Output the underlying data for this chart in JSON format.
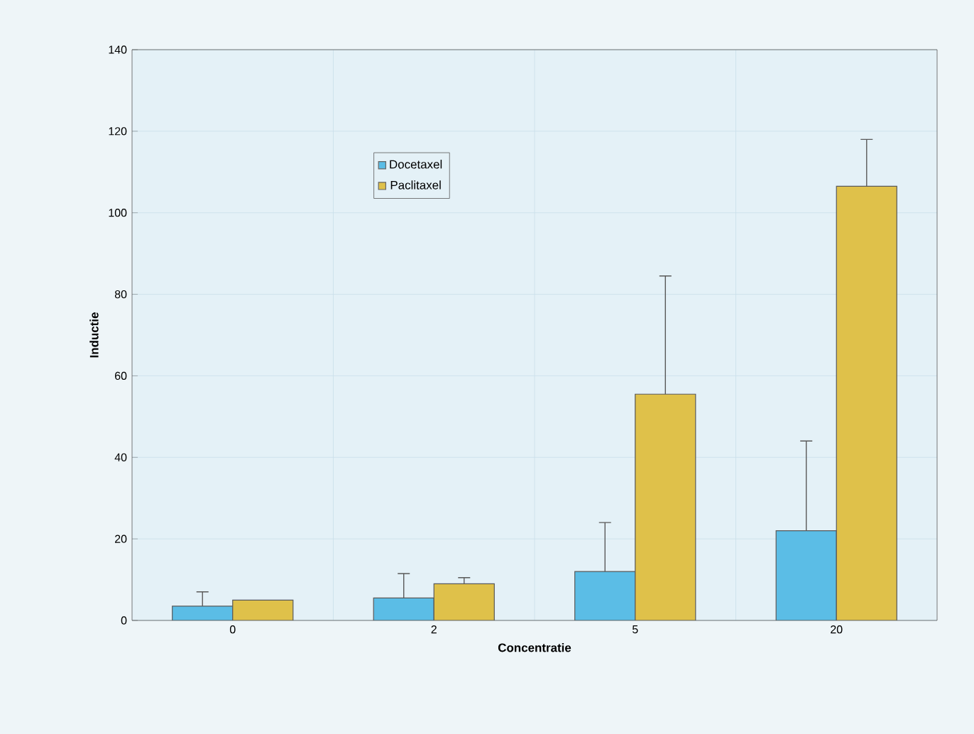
{
  "chart_data": {
    "type": "bar",
    "xlabel": "Concentratie",
    "ylabel": "Inductie",
    "categories": [
      "0",
      "2",
      "5",
      "20"
    ],
    "series": [
      {
        "name": "Docetaxel",
        "color": "#5bbde6",
        "values": [
          3.5,
          5.5,
          12,
          22
        ],
        "errors": [
          [
            3.5,
            7
          ],
          [
            5.5,
            11.5
          ],
          [
            12,
            24
          ],
          [
            22,
            44
          ]
        ]
      },
      {
        "name": "Paclitaxel",
        "color": "#dfc14a",
        "values": [
          5,
          9,
          55.5,
          106.5
        ],
        "errors": [
          null,
          [
            9,
            10.5
          ],
          [
            55.5,
            84.5
          ],
          [
            106.5,
            118
          ]
        ]
      }
    ],
    "ylim": [
      0,
      140
    ],
    "yticks": [
      0,
      20,
      40,
      60,
      80,
      100,
      120,
      140
    ],
    "grid": true,
    "legend": "top left"
  }
}
